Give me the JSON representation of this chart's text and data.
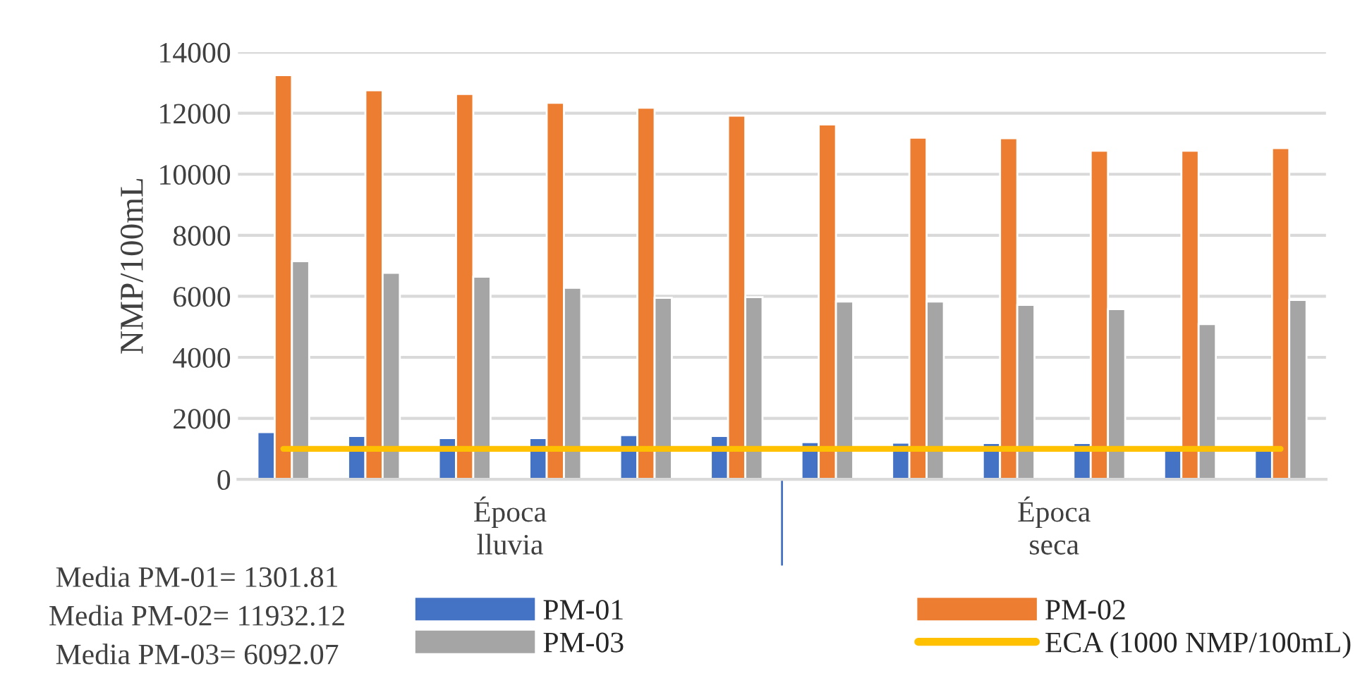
{
  "chart_data": {
    "type": "bar",
    "ylabel": "NMP/100mL",
    "categories": [
      null,
      null,
      null,
      null,
      null,
      null,
      null,
      null,
      null,
      null,
      null,
      null
    ],
    "series": [
      {
        "name": "PM-01",
        "color": "#4472c4",
        "values": [
          1550,
          1420,
          1350,
          1350,
          1450,
          1420,
          1220,
          1200,
          1190,
          1190,
          980,
          980
        ]
      },
      {
        "name": "PM-02",
        "color": "#ed7d31",
        "values": [
          13250,
          12750,
          12630,
          12340,
          12180,
          11920,
          11630,
          11200,
          11180,
          10770,
          10770,
          10860
        ]
      },
      {
        "name": "PM-03",
        "color": "#a5a5a5",
        "values": [
          7150,
          6770,
          6640,
          6280,
          5950,
          5970,
          5830,
          5830,
          5720,
          5580,
          5090,
          5880
        ]
      },
      {
        "name": "ECA (1000 NMP/100mL)",
        "color": "#ffc000",
        "type": "line",
        "values": [
          1000,
          1000,
          1000,
          1000,
          1000,
          1000,
          1000,
          1000,
          1000,
          1000,
          1000,
          1000
        ]
      }
    ],
    "ylim": [
      0,
      14000
    ],
    "yticks": [
      0,
      2000,
      4000,
      6000,
      8000,
      10000,
      12000,
      14000
    ],
    "grid": "y",
    "legend": "bottom",
    "annotations": [
      "Época\nlluvia",
      "Época\nseca",
      "Media PM-01= 1301.81",
      "Media PM-02= 11932.12",
      "Media PM-03= 6092.07"
    ]
  }
}
